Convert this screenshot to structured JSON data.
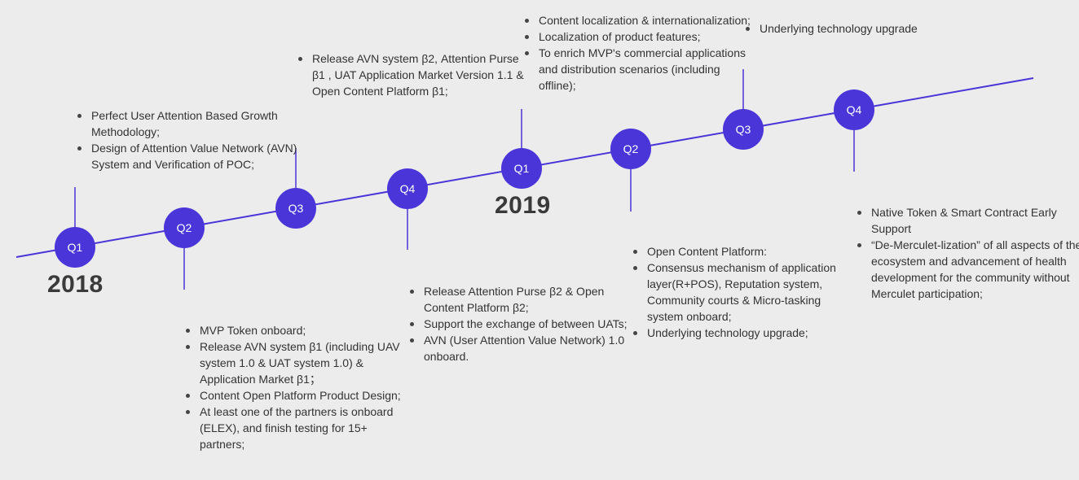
{
  "colors": {
    "accent": "#4a35d9",
    "background": "#ececec",
    "text": "#333333"
  },
  "years": [
    "2018",
    "2019"
  ],
  "quarters": [
    "Q1",
    "Q2",
    "Q3",
    "Q4",
    "Q1",
    "Q2",
    "Q3",
    "Q4"
  ],
  "milestones": [
    [
      "Perfect User Attention Based Growth Methodology;",
      "Design of Attention Value Network (AVN) System and Verification of POC;"
    ],
    [
      "MVP Token onboard;",
      "Release AVN system β1 (including UAV system 1.0 & UAT system 1.0) & Application Market β1；",
      "Content Open Platform Product Design;",
      "At least one of the partners is onboard (ELEX), and finish testing for 15+ partners;"
    ],
    [
      "Release AVN system β2, Attention Purse β1 , UAT Application Market Version 1.1 & Open Content Platform β1;"
    ],
    [
      "Release Attention Purse β2 & Open Content Platform β2;",
      "Support the exchange of between UATs;",
      "AVN (User Attention Value Network) 1.0 onboard."
    ],
    [
      "Content localization & internationalization;",
      "Localization of product features;",
      "To enrich MVP's commercial applications and distribution scenarios (including offline);"
    ],
    [
      "Open Content Platform:",
      "Consensus mechanism of application layer(R+POS), Reputation system, Community courts & Micro-tasking system onboard;",
      "Underlying technology upgrade;"
    ],
    [
      "Underlying technology upgrade"
    ],
    [
      "Native Token & Smart Contract Early Support",
      "“De-Merculet-lization” of all aspects of the ecosystem and advancement of health development for the community without Merculet participation;"
    ]
  ]
}
